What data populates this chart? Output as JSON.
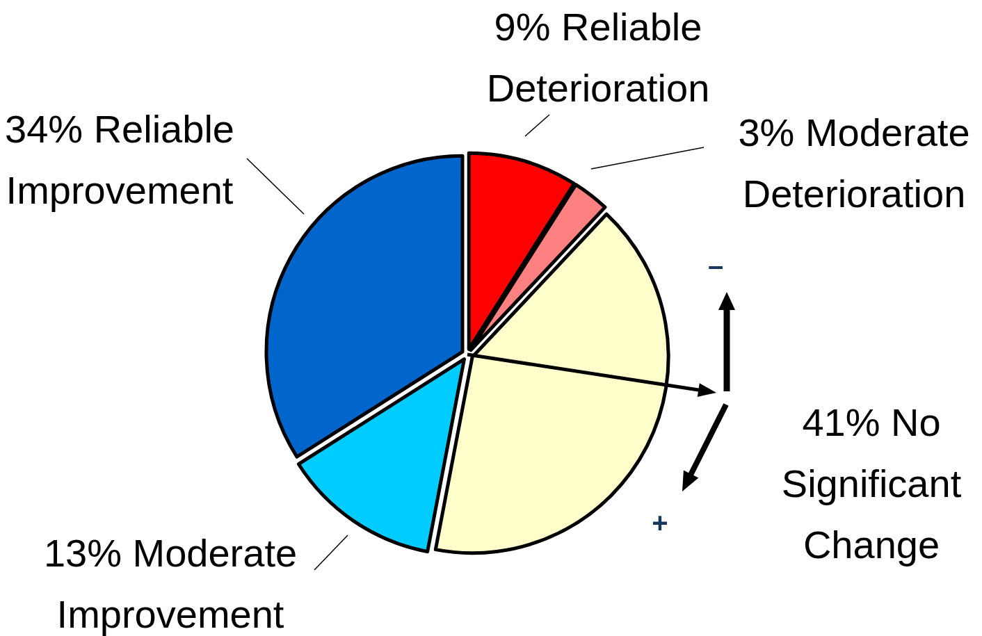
{
  "chart_data": {
    "type": "pie",
    "categories": [
      "Reliable Deterioration",
      "Moderate Deterioration",
      "No Significant Change",
      "Moderate Improvement",
      "Reliable Improvement"
    ],
    "values": [
      9,
      3,
      41,
      13,
      34
    ],
    "value_labels": [
      "9%",
      "3%",
      "41%",
      "13%",
      "34%"
    ],
    "colors": [
      "#ff0000",
      "#ff8080",
      "#ffffcc",
      "#00ccff",
      "#0066cc"
    ],
    "annotations": [
      "–",
      "+"
    ]
  }
}
